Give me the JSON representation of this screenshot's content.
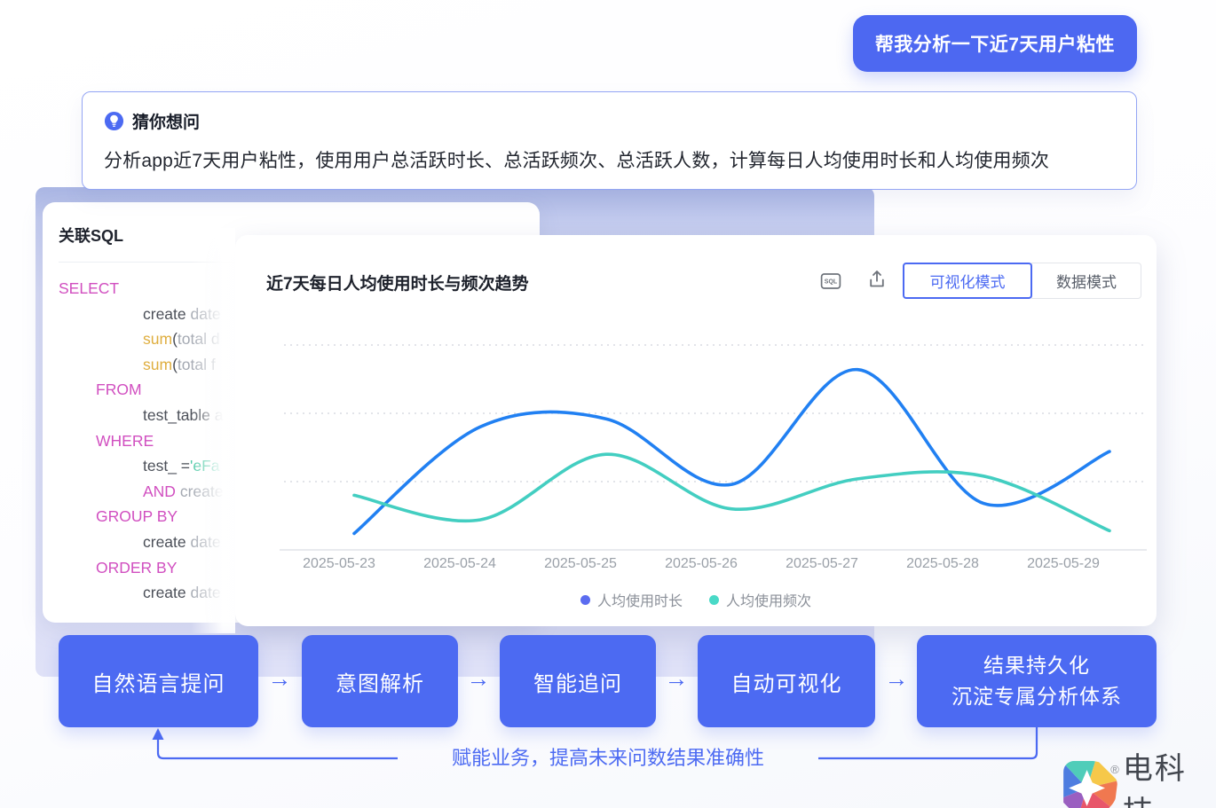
{
  "colors": {
    "accent": "#4c6af2",
    "bubble_bg": "#4d68f1",
    "line_blue": "#2180f2",
    "line_teal": "#43cec1",
    "legend_blue": "#5b6cf0",
    "legend_teal": "#49d9c7",
    "sql_keyword": "#d14fc0",
    "sql_function": "#dfae3f",
    "sql_string": "#4ec9a6"
  },
  "chat_bubble": {
    "text": "帮我分析一下近7天用户粘性"
  },
  "suggestion_card": {
    "icon": "lightbulb-icon",
    "title": "猜你想问",
    "body": "分析app近7天用户粘性，使用用户总活跃时长、总活跃频次、总活跃人数，计算每日人均使用时长和人均使用频次"
  },
  "sql_card": {
    "title": "关联SQL",
    "code_lines": [
      {
        "indent": 0,
        "tokens": [
          {
            "t": "SELECT",
            "c": "kw"
          }
        ]
      },
      {
        "indent": 2,
        "tokens": [
          {
            "t": "create ",
            "c": "txt"
          },
          {
            "t": "date",
            "c": "dim"
          }
        ]
      },
      {
        "indent": 2,
        "tokens": [
          {
            "t": "sum",
            "c": "fn"
          },
          {
            "t": "(",
            "c": "txt"
          },
          {
            "t": "total d",
            "c": "dim"
          }
        ]
      },
      {
        "indent": 2,
        "tokens": [
          {
            "t": "sum",
            "c": "fn"
          },
          {
            "t": "(",
            "c": "txt"
          },
          {
            "t": "total f",
            "c": "dim"
          }
        ]
      },
      {
        "indent": 1,
        "tokens": [
          {
            "t": "FROM",
            "c": "kw"
          }
        ]
      },
      {
        "indent": 2,
        "tokens": [
          {
            "t": "test_table ",
            "c": "txt"
          },
          {
            "t": "a",
            "c": "dim"
          }
        ]
      },
      {
        "indent": 1,
        "tokens": [
          {
            "t": "WHERE",
            "c": "kw"
          }
        ]
      },
      {
        "indent": 2,
        "tokens": [
          {
            "t": "test_ =",
            "c": "txt"
          },
          {
            "t": "'eFa",
            "c": "str"
          }
        ]
      },
      {
        "indent": 2,
        "tokens": [
          {
            "t": "AND",
            "c": "kw"
          },
          {
            "t": " create",
            "c": "dim"
          }
        ]
      },
      {
        "indent": 1,
        "tokens": [
          {
            "t": "GROUP BY",
            "c": "kw"
          }
        ]
      },
      {
        "indent": 2,
        "tokens": [
          {
            "t": "create ",
            "c": "txt"
          },
          {
            "t": "date",
            "c": "dim"
          }
        ]
      },
      {
        "indent": 1,
        "tokens": [
          {
            "t": "ORDER BY",
            "c": "kw"
          }
        ]
      },
      {
        "indent": 2,
        "tokens": [
          {
            "t": "create ",
            "c": "txt"
          },
          {
            "t": "date",
            "c": "dim"
          }
        ]
      }
    ]
  },
  "chart_card": {
    "title": "近7天每日人均使用时长与频次趋势",
    "toolbar": {
      "sql_icon": "sql-icon",
      "export_icon": "export-icon",
      "modes": [
        {
          "label": "可视化模式",
          "active": true
        },
        {
          "label": "数据模式",
          "active": false
        }
      ]
    }
  },
  "chart_data": {
    "type": "line",
    "smooth": true,
    "title": "近7天每日人均使用时长与频次趋势",
    "categories": [
      "2025-05-23",
      "2025-05-24",
      "2025-05-25",
      "2025-05-26",
      "2025-05-27",
      "2025-05-28",
      "2025-05-29"
    ],
    "series": [
      {
        "name": "人均使用时长",
        "color": "#2180f2",
        "legend_color": "#5b6cf0",
        "values": [
          6,
          45,
          48,
          24,
          66,
          17,
          36
        ]
      },
      {
        "name": "人均使用频次",
        "color": "#43cec1",
        "legend_color": "#49d9c7",
        "values": [
          20,
          11,
          35,
          15,
          26,
          27,
          7
        ]
      }
    ],
    "ylim": [
      0,
      100
    ],
    "gridline_values": [
      25,
      50,
      75
    ],
    "grid_style": "dotted",
    "legend_position": "bottom",
    "xlabel": "",
    "ylabel": ""
  },
  "flow": {
    "arrow_glyph": "→",
    "steps": [
      {
        "label": "自然语言提问"
      },
      {
        "label": "意图解析"
      },
      {
        "label": "智能追问"
      },
      {
        "label": "自动可视化"
      },
      {
        "label": "结果持久化",
        "label2": "沉淀专属分析体系"
      }
    ],
    "feedback_text": "赋能业务，提高未来问数结果准确性"
  },
  "footer": {
    "brand": "电科技",
    "reg_mark": "®"
  }
}
